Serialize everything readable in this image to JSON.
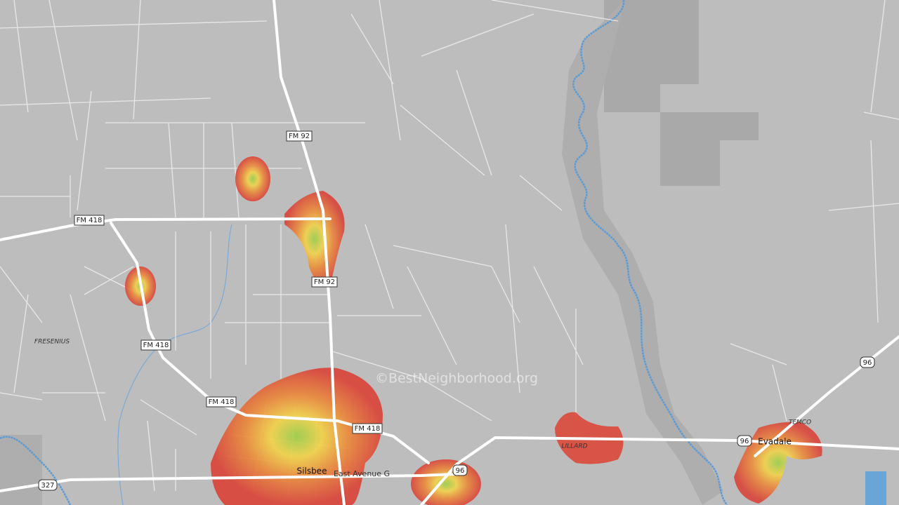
{
  "map": {
    "watermark": "©BestNeighborhood.org",
    "road_labels": [
      "FM 92",
      "FM 92",
      "FM 418",
      "FM 418",
      "FM 418",
      "FM 418"
    ],
    "route_shields": [
      "96",
      "96",
      "96",
      "327"
    ],
    "street_labels": [
      "East Avenue G"
    ],
    "place_labels": [
      "FRESENIUS",
      "LILLARD",
      "TEMCO"
    ],
    "town_labels": [
      "Silsbee",
      "Evadale"
    ]
  }
}
